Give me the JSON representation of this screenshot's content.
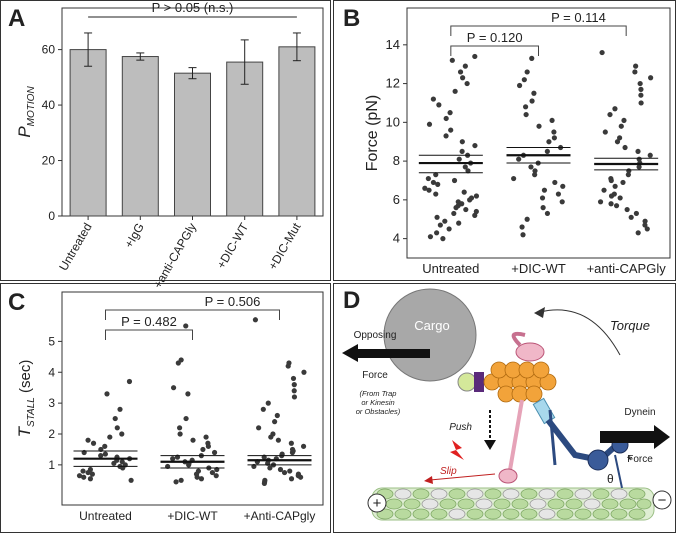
{
  "chart_data": [
    {
      "panel": "A",
      "type": "bar",
      "categories": [
        "Untreated",
        "+IgG",
        "+anti-CAPGly",
        "+DIC-WT",
        "+DIC-Mut"
      ],
      "values": [
        60,
        57.5,
        51.5,
        55.5,
        61
      ],
      "errors": [
        6,
        1.3,
        2,
        8,
        5
      ],
      "color": "#bdbdbd",
      "ylabel": "P",
      "ylabel_sub": "MOTION",
      "ylim": [
        0,
        75
      ],
      "yticks": [
        0,
        20,
        40,
        60
      ],
      "annotation": "P > 0.05 (n.s.)"
    },
    {
      "panel": "B",
      "type": "scatter",
      "categories": [
        "Untreated",
        "+DIC-WT",
        "+anti-CAPGly"
      ],
      "color": "#3a3a3a",
      "points": [
        [
          13.4,
          13.2,
          12.9,
          12.6,
          12.3,
          12.0,
          11.6,
          11.2,
          10.9,
          10.5,
          10.2,
          9.9,
          9.6,
          9.3,
          9.0,
          8.8,
          8.5,
          8.3,
          8.1,
          7.9,
          7.7,
          7.5,
          7.3,
          7.1,
          6.9,
          6.8,
          6.6,
          6.5,
          6.3,
          6.2,
          6.0,
          5.9,
          5.8,
          5.6,
          5.5,
          5.4,
          5.2,
          5.1,
          4.9,
          4.7,
          4.5,
          4.3,
          4.1,
          4.0,
          6.1,
          5.7,
          6.4,
          7.0,
          5.3,
          4.8
        ],
        [
          13.3,
          12.6,
          12.2,
          11.9,
          11.5,
          11.1,
          10.8,
          10.4,
          10.1,
          9.8,
          9.5,
          9.2,
          9.0,
          8.7,
          8.5,
          8.3,
          8.1,
          7.9,
          7.7,
          7.5,
          7.3,
          7.1,
          6.9,
          6.7,
          6.5,
          6.3,
          6.1,
          5.9,
          5.6,
          5.3,
          5.0,
          4.6,
          4.2
        ],
        [
          13.6,
          12.9,
          12.6,
          12.3,
          12.0,
          11.7,
          11.4,
          11.0,
          10.7,
          10.4,
          10.1,
          9.8,
          9.5,
          9.2,
          9.0,
          8.7,
          8.5,
          8.3,
          8.1,
          7.9,
          7.7,
          7.5,
          7.3,
          7.1,
          6.9,
          6.7,
          6.5,
          6.3,
          6.1,
          5.9,
          5.7,
          5.5,
          5.3,
          5.1,
          4.9,
          4.7,
          4.5,
          4.3,
          6.2,
          7.0,
          5.8
        ]
      ],
      "means": [
        7.9,
        8.3,
        7.85
      ],
      "lower": [
        7.4,
        7.9,
        7.55
      ],
      "upper": [
        8.3,
        8.7,
        8.15
      ],
      "ylabel": "Force (pN)",
      "ylim": [
        3,
        15.9
      ],
      "yticks": [
        4,
        6,
        8,
        10,
        12,
        14
      ],
      "comparisons": [
        "P = 0.120",
        "P = 0.114"
      ]
    },
    {
      "panel": "C",
      "type": "scatter",
      "categories": [
        "Untreated",
        "+DIC-WT",
        "+Anti-CAPgly"
      ],
      "color": "#3a3a3a",
      "points": [
        [
          3.7,
          3.3,
          2.8,
          2.5,
          2.2,
          2.0,
          1.9,
          1.8,
          1.7,
          1.6,
          1.5,
          1.4,
          1.35,
          1.3,
          1.25,
          1.2,
          1.15,
          1.1,
          1.05,
          1.0,
          0.95,
          0.9,
          0.85,
          0.8,
          0.75,
          0.7,
          0.65,
          0.6,
          0.55,
          0.5
        ],
        [
          5.5,
          4.4,
          4.3,
          3.5,
          3.3,
          2.5,
          2.2,
          2.0,
          1.9,
          1.8,
          1.7,
          1.6,
          1.5,
          1.4,
          1.3,
          1.25,
          1.2,
          1.15,
          1.1,
          1.05,
          1.0,
          0.95,
          0.9,
          0.85,
          0.8,
          0.75,
          0.7,
          0.65,
          0.6,
          0.55,
          0.5,
          0.45
        ],
        [
          5.7,
          4.3,
          4.2,
          4.0,
          3.8,
          3.6,
          3.4,
          3.2,
          3.0,
          2.8,
          2.6,
          2.4,
          2.2,
          2.0,
          1.9,
          1.8,
          1.7,
          1.6,
          1.5,
          1.45,
          1.4,
          1.35,
          1.3,
          1.25,
          1.2,
          1.15,
          1.1,
          1.05,
          1.0,
          0.95,
          0.9,
          0.85,
          0.8,
          0.75,
          0.7,
          0.65,
          0.6,
          0.55,
          0.5,
          0.45,
          0.4
        ]
      ],
      "means": [
        1.2,
        1.1,
        1.15
      ],
      "lower": [
        0.95,
        0.9,
        1.0
      ],
      "upper": [
        1.45,
        1.3,
        1.3
      ],
      "ylabel": "T",
      "ylabel_sub": "STALL",
      "ylabel_unit": " (sec)",
      "ylim": [
        -0.3,
        6.6
      ],
      "yticks": [
        1,
        2,
        3,
        4,
        5
      ],
      "comparisons": [
        "P = 0.482",
        "P = 0.506"
      ]
    }
  ],
  "diagram": {
    "panel": "D",
    "cargo": "Cargo",
    "opposing_force": [
      "Opposing",
      "Force"
    ],
    "source": [
      "(From Trap",
      "or Kinesin",
      "or Obstacles)"
    ],
    "torque": "Torque",
    "push": "Push",
    "slip": "Slip",
    "dynein_force": [
      "Dynein",
      "Force"
    ],
    "theta": "θ",
    "star": "*",
    "plus": "+",
    "minus": "−"
  }
}
